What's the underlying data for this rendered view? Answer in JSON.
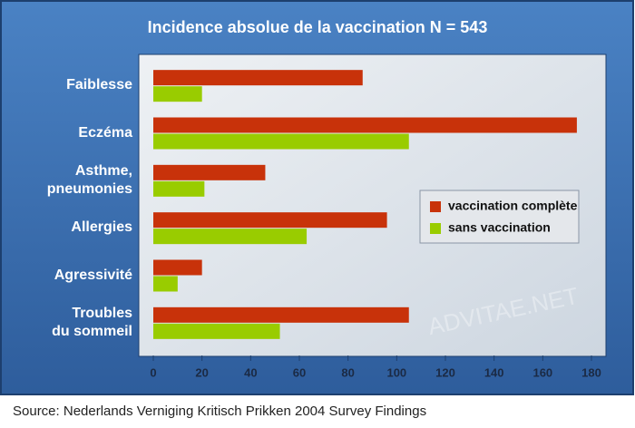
{
  "chart_data": {
    "type": "bar",
    "orientation": "horizontal",
    "title": "Incidence absolue de la vaccination N = 543",
    "categories": [
      "Faiblesse",
      "Eczéma",
      "Asthme,\npneumonies",
      "Allergies",
      "Agressivité",
      "Troubles\ndu sommeil"
    ],
    "series": [
      {
        "name": "vaccination complète",
        "color": "#c8320a",
        "values": [
          86,
          174,
          46,
          96,
          20,
          105
        ]
      },
      {
        "name": "sans vaccination",
        "color": "#99cc00",
        "values": [
          20,
          105,
          21,
          63,
          10,
          52
        ]
      }
    ],
    "xlim": [
      0,
      180
    ],
    "xticks": [
      0,
      20,
      40,
      60,
      80,
      100,
      120,
      140,
      160,
      180
    ],
    "legend": "right",
    "watermark": "ADVITAE.NET",
    "source": "Source: Nederlands Verniging Kritisch Prikken 2004 Survey Findings"
  }
}
